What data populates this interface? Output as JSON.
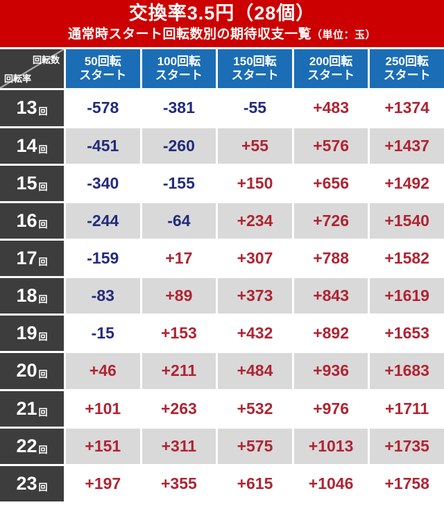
{
  "header": {
    "title": "交換率3.5円（28個）",
    "subtitle": "通常時スタート回転数別の期待収支一覧",
    "subtitle_unit": "（単位：玉）"
  },
  "corner": {
    "top_label": "回転数",
    "bottom_label": "回転率"
  },
  "chart_data": {
    "type": "table",
    "title": "交換率3.5円（28個）",
    "subtitle": "通常時スタート回転数別の期待収支一覧",
    "unit": "玉",
    "columns": [
      {
        "line1": "50回転",
        "line2": "スタート"
      },
      {
        "line1": "100回転",
        "line2": "スタート"
      },
      {
        "line1": "150回転",
        "line2": "スタート"
      },
      {
        "line1": "200回転",
        "line2": "スタート"
      },
      {
        "line1": "250回転",
        "line2": "スタート"
      }
    ],
    "row_labels": [
      {
        "number": "13",
        "unit": "回"
      },
      {
        "number": "14",
        "unit": "回"
      },
      {
        "number": "15",
        "unit": "回"
      },
      {
        "number": "16",
        "unit": "回"
      },
      {
        "number": "17",
        "unit": "回"
      },
      {
        "number": "18",
        "unit": "回"
      },
      {
        "number": "19",
        "unit": "回"
      },
      {
        "number": "20",
        "unit": "回"
      },
      {
        "number": "21",
        "unit": "回"
      },
      {
        "number": "22",
        "unit": "回"
      },
      {
        "number": "23",
        "unit": "回"
      }
    ],
    "values": [
      [
        -578,
        -381,
        -55,
        483,
        1374
      ],
      [
        -451,
        -260,
        55,
        576,
        1437
      ],
      [
        -340,
        -155,
        150,
        656,
        1492
      ],
      [
        -244,
        -64,
        234,
        726,
        1540
      ],
      [
        -159,
        17,
        307,
        788,
        1582
      ],
      [
        -83,
        89,
        373,
        843,
        1619
      ],
      [
        -15,
        153,
        432,
        892,
        1653
      ],
      [
        46,
        211,
        484,
        936,
        1683
      ],
      [
        101,
        263,
        532,
        976,
        1711
      ],
      [
        151,
        311,
        575,
        1013,
        1735
      ],
      [
        197,
        355,
        615,
        1046,
        1758
      ]
    ]
  },
  "colors": {
    "header_red": "#cc0000",
    "column_blue": "#1b6db5",
    "row_dark": "#3d3d3d",
    "alt_row_gray": "#d9d9d9",
    "negative": "#232b7c",
    "positive": "#b02432"
  }
}
